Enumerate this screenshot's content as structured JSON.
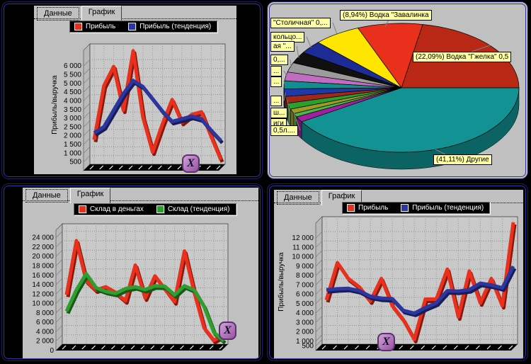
{
  "ui": {
    "close_label": "X"
  },
  "windows": {
    "tl": {
      "tabs": [
        {
          "label": "Данные",
          "active": false
        },
        {
          "label": "График",
          "active": true
        }
      ],
      "legend": [
        {
          "label": "Прибыль",
          "color": "#e8301c"
        },
        {
          "label": "Прибыль (тенденция)",
          "color": "#2c35a0"
        }
      ],
      "ylabel": "Прибыль/выручка"
    },
    "tr": {
      "callouts": {
        "top": "(8,94%) Водка \"Завалинка",
        "right": "(22,09%) Водка \"Гжелка\"  0,5",
        "bottom": "(41,11%) Другие",
        "left": [
          "\"Столичная\"  0,...",
          "кольцо...",
          "ая \"...",
          "0,...",
          "...",
          "...",
          "...",
          "ш...",
          "иги",
          "0,5л...."
        ]
      }
    },
    "bl": {
      "tabs": [
        {
          "label": "Данные",
          "active": false
        },
        {
          "label": "График",
          "active": true
        }
      ],
      "legend": [
        {
          "label": "Склад в деньгах",
          "color": "#e8301c"
        },
        {
          "label": "Склад (тенденция)",
          "color": "#2f9e2f"
        }
      ]
    },
    "br": {
      "tabs": [
        {
          "label": "Данные",
          "active": false
        },
        {
          "label": "График",
          "active": true
        }
      ],
      "legend": [
        {
          "label": "Прибыль",
          "color": "#e8301c"
        },
        {
          "label": "Прибыль (тенденция)",
          "color": "#2c35a0"
        }
      ],
      "ylabel": "Прибыль/выручка"
    }
  },
  "chart_data": [
    {
      "id": "tl",
      "type": "line",
      "ylabel": "Прибыль/выручка",
      "ylim": [
        0,
        6900
      ],
      "yticks": [
        500,
        1000,
        1500,
        2000,
        2500,
        3000,
        3500,
        4000,
        4500,
        5000,
        5500,
        6000
      ],
      "series": [
        {
          "name": "Прибыль",
          "color": "#e8301c",
          "values": [
            1400,
            4500,
            5600,
            3100,
            6500,
            2700,
            700,
            2300,
            3700,
            2400,
            2850,
            3000,
            1600,
            250
          ]
        },
        {
          "name": "Прибыль (тенденция)",
          "color": "#2c35a0",
          "values": [
            1800,
            2150,
            3100,
            4050,
            4800,
            4450,
            3750,
            3050,
            2450,
            2600,
            2750,
            2600,
            1950,
            1350
          ]
        }
      ]
    },
    {
      "id": "tr",
      "type": "pie",
      "title": "",
      "slices": [
        {
          "label": "(22,09%) Водка \"Гжелка\"  0,5",
          "pct": 22.09,
          "color": "#b82814"
        },
        {
          "label": "(8,94%) Водка \"Завалинка",
          "pct": 8.94,
          "color": "#e8301c"
        },
        {
          "label": "\"Столичная\"  0,...",
          "pct": 6.5,
          "color": "#ffe600"
        },
        {
          "label": "кольцо...",
          "pct": 3.2,
          "color": "#1c2c94"
        },
        {
          "label": "ая \"...",
          "pct": 2.9,
          "color": "#101010"
        },
        {
          "label": "0,...",
          "pct": 2.4,
          "color": "#9c9c9c"
        },
        {
          "label": "...",
          "pct": 2.2,
          "color": "#c06cc0"
        },
        {
          "label": "...",
          "pct": 2.0,
          "color": "#118f8f"
        },
        {
          "label": "...",
          "pct": 1.9,
          "color": "#2038a8"
        },
        {
          "label": "ш...",
          "pct": 1.7,
          "color": "#a02818"
        },
        {
          "label": "иги",
          "pct": 1.5,
          "color": "#2ca02c"
        },
        {
          "label": "0,5л....",
          "pct": 1.2,
          "color": "#9c9c20"
        },
        {
          "label": "",
          "pct": 0.9,
          "color": "#49b849"
        },
        {
          "label": "",
          "pct": 1.4,
          "color": "#a020a0"
        },
        {
          "label": "(41,11%) Другие",
          "pct": 41.11,
          "color": "#129292"
        }
      ]
    },
    {
      "id": "bl",
      "type": "line",
      "ylim": [
        0,
        25600
      ],
      "yticks": [
        0,
        2000,
        4000,
        6000,
        8000,
        10000,
        12000,
        14000,
        16000,
        18000,
        20000,
        22000,
        24000
      ],
      "series": [
        {
          "name": "Склад в деньгах",
          "color": "#e8301c",
          "values": [
            10500,
            22000,
            13500,
            11500,
            12200,
            11000,
            9200,
            16800,
            9800,
            14500,
            11800,
            9000,
            19800,
            11000,
            3500,
            800,
            2000
          ]
        },
        {
          "name": "Склад (тенденция)",
          "color": "#2f9e2f",
          "values": [
            7000,
            11500,
            15000,
            12000,
            11200,
            10800,
            11800,
            12200,
            11600,
            12400,
            12300,
            10500,
            12400,
            11500,
            8000,
            2500,
            700
          ]
        }
      ]
    },
    {
      "id": "br",
      "type": "line",
      "ylabel": "Прибыль/выручка",
      "ylim": [
        0,
        13600
      ],
      "yticks": [
        500,
        1000,
        2000,
        3000,
        4000,
        5000,
        6000,
        7000,
        8000,
        9000,
        10000,
        11000,
        12000
      ],
      "series": [
        {
          "name": "Прибыль",
          "color": "#e8301c",
          "values": [
            4700,
            8700,
            7000,
            6100,
            4600,
            7000,
            4100,
            2600,
            500,
            4800,
            4800,
            8000,
            2900,
            7800,
            4400,
            7000,
            4100,
            13000
          ]
        },
        {
          "name": "Прибыль (тенденция)",
          "color": "#2c35a0",
          "values": [
            5800,
            5900,
            5950,
            5700,
            5100,
            4900,
            4850,
            3600,
            3300,
            3900,
            4400,
            5700,
            5650,
            5800,
            6500,
            6300,
            6000,
            8300
          ]
        }
      ]
    }
  ]
}
